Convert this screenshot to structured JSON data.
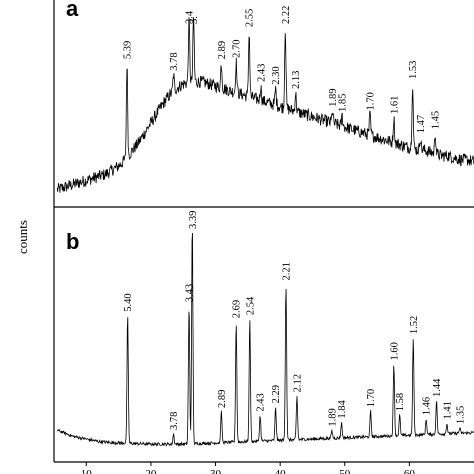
{
  "chart_data": {
    "type": "line",
    "ylabel": "counts",
    "xlim": [
      5,
      70
    ],
    "x_ticks": [
      10,
      20,
      30,
      40,
      50,
      60
    ],
    "panels": [
      {
        "label": "a",
        "ylim": [
          0,
          100
        ],
        "series": [
          {
            "name": "",
            "x": [
              5,
              6,
              7,
              8,
              9,
              10,
              11,
              12,
              13,
              14,
              15,
              16,
              17,
              18,
              19,
              20,
              21,
              22,
              23,
              24,
              25,
              26,
              27,
              28,
              29,
              30,
              31,
              32,
              33,
              34,
              35,
              36,
              37,
              38,
              39,
              40,
              41,
              42,
              43,
              44,
              45,
              46,
              47,
              48,
              49,
              50,
              51,
              52,
              53,
              54,
              55,
              56,
              57,
              58,
              59,
              60,
              61,
              62,
              63,
              64,
              65,
              66,
              67,
              68,
              69,
              70
            ],
            "y": [
              8,
              9,
              10,
              11,
              12,
              13,
              14,
              15,
              16,
              18,
              20,
              23,
              27,
              31,
              36,
              41,
              46,
              51,
              55,
              58,
              60,
              61,
              61,
              61,
              60,
              59,
              58,
              57,
              56,
              55,
              54,
              53,
              52,
              51,
              50,
              49,
              48,
              47,
              46,
              45,
              44,
              43,
              42,
              41,
              40,
              39,
              38,
              37,
              36,
              35,
              34,
              33,
              32,
              31,
              30,
              29,
              28,
              28,
              27,
              26,
              25,
              25,
              24,
              23,
              23,
              22
            ]
          }
        ],
        "peaks": [
          {
            "x": 16.3,
            "height": 46,
            "label": "5.39"
          },
          {
            "x": 23.5,
            "height": 8,
            "label": "3.78"
          },
          {
            "x": 25.9,
            "height": 30,
            "label": "3.4"
          },
          {
            "x": 26.6,
            "height": 32,
            "label": "3."
          },
          {
            "x": 30.9,
            "height": 12,
            "label": "2.89"
          },
          {
            "x": 33.2,
            "height": 15,
            "label": "2.70"
          },
          {
            "x": 35.2,
            "height": 32,
            "label": "2.55"
          },
          {
            "x": 37.0,
            "height": 7,
            "label": "2.43"
          },
          {
            "x": 39.3,
            "height": 8,
            "label": "2.30"
          },
          {
            "x": 40.8,
            "height": 40,
            "label": "2.22"
          },
          {
            "x": 42.4,
            "height": 9,
            "label": "2.13"
          },
          {
            "x": 48.1,
            "height": 6,
            "label": "1.89"
          },
          {
            "x": 49.6,
            "height": 5,
            "label": "1.85"
          },
          {
            "x": 53.9,
            "height": 10,
            "label": "1.70"
          },
          {
            "x": 57.6,
            "height": 12,
            "label": "1.61"
          },
          {
            "x": 60.5,
            "height": 32,
            "label": "1.53"
          },
          {
            "x": 61.7,
            "height": 6,
            "label": "1.47"
          },
          {
            "x": 64.0,
            "height": 10,
            "label": "1.45"
          }
        ]
      },
      {
        "label": "b",
        "ylim": [
          0,
          100
        ],
        "series": [
          {
            "name": "",
            "x": [
              5,
              6,
              7,
              8,
              9,
              10,
              11,
              12,
              13,
              14,
              15,
              16,
              17,
              18,
              19,
              20,
              21,
              22,
              23,
              24,
              25,
              26,
              27,
              28,
              29,
              30,
              31,
              32,
              33,
              34,
              35,
              36,
              37,
              38,
              39,
              40,
              41,
              42,
              43,
              44,
              45,
              46,
              47,
              48,
              49,
              50,
              51,
              52,
              53,
              54,
              55,
              56,
              57,
              58,
              59,
              60,
              61,
              62,
              63,
              64,
              65,
              66,
              67,
              68,
              69,
              70
            ],
            "y": [
              13,
              12,
              11,
              10,
              9.5,
              9,
              8.5,
              8,
              7.8,
              7.6,
              7.5,
              7.4,
              7.3,
              7.2,
              7.1,
              7,
              7,
              7,
              7,
              7,
              7,
              7.1,
              7.2,
              7.3,
              7.4,
              7.5,
              7.6,
              7.7,
              7.8,
              7.9,
              8,
              8.1,
              8.2,
              8.3,
              8.4,
              8.5,
              8.6,
              8.7,
              8.8,
              8.9,
              9,
              9.1,
              9.2,
              9.3,
              9.4,
              9.5,
              9.6,
              9.7,
              9.8,
              9.9,
              10,
              10.1,
              10.2,
              10.3,
              10.4,
              10.5,
              10.6,
              10.7,
              10.8,
              10.9,
              11,
              11.1,
              11.2,
              11.3,
              11.4,
              11.5
            ]
          }
        ],
        "peaks": [
          {
            "x": 16.4,
            "height": 50,
            "label": "5.40"
          },
          {
            "x": 23.5,
            "height": 4,
            "label": "3.78"
          },
          {
            "x": 25.9,
            "height": 54,
            "label": "3.43"
          },
          {
            "x": 26.4,
            "height": 86,
            "label": "3.39"
          },
          {
            "x": 30.9,
            "height": 12,
            "label": "2.89"
          },
          {
            "x": 33.2,
            "height": 47,
            "label": "2.69"
          },
          {
            "x": 35.3,
            "height": 48,
            "label": "2.54"
          },
          {
            "x": 36.9,
            "height": 10,
            "label": "2.43"
          },
          {
            "x": 39.3,
            "height": 13,
            "label": "2.29"
          },
          {
            "x": 40.9,
            "height": 61,
            "label": "2.21"
          },
          {
            "x": 42.6,
            "height": 17,
            "label": "2.12"
          },
          {
            "x": 48.0,
            "height": 3,
            "label": "1.89"
          },
          {
            "x": 49.5,
            "height": 6,
            "label": "1.84"
          },
          {
            "x": 54.0,
            "height": 10,
            "label": "1.70"
          },
          {
            "x": 57.6,
            "height": 28,
            "label": "1.60"
          },
          {
            "x": 58.5,
            "height": 8,
            "label": "1.58"
          },
          {
            "x": 60.6,
            "height": 38,
            "label": "1.52"
          },
          {
            "x": 62.6,
            "height": 6,
            "label": "1.46"
          },
          {
            "x": 64.2,
            "height": 13,
            "label": "1.44"
          },
          {
            "x": 65.8,
            "height": 4,
            "label": "1.41"
          },
          {
            "x": 67.8,
            "height": 2,
            "label": "1.35"
          }
        ]
      }
    ]
  }
}
